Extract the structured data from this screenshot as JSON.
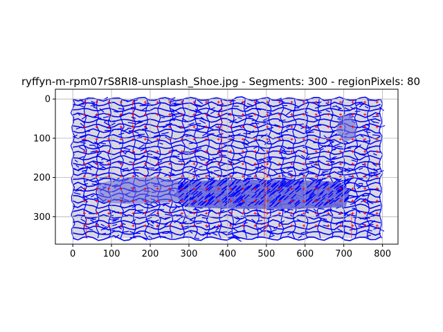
{
  "chart_data": {
    "type": "heatmap",
    "title": "ryffyn-m-rpm07rS8RI8-unsplash_Shoe.jpg - Segments: 300 - regionPixels: 80",
    "x_ticks": [
      "0",
      "100",
      "200",
      "300",
      "400",
      "500",
      "600",
      "700",
      "800"
    ],
    "y_ticks": [
      "0",
      "100",
      "200",
      "300"
    ],
    "xlim": [
      -45,
      840
    ],
    "ylim": [
      370,
      -25
    ],
    "grid": true,
    "image_extent": {
      "x": [
        0,
        795
      ],
      "y": [
        0,
        355
      ]
    },
    "region_grid": {
      "columns": 25,
      "rows": 11
    },
    "colors": {
      "image_background": "#d9d9dd",
      "segment_lines": "#0000ff",
      "region_markers": "#ff0000",
      "grid": "#b0b0b0",
      "shoe_shadow": "#6a6ad8"
    }
  }
}
